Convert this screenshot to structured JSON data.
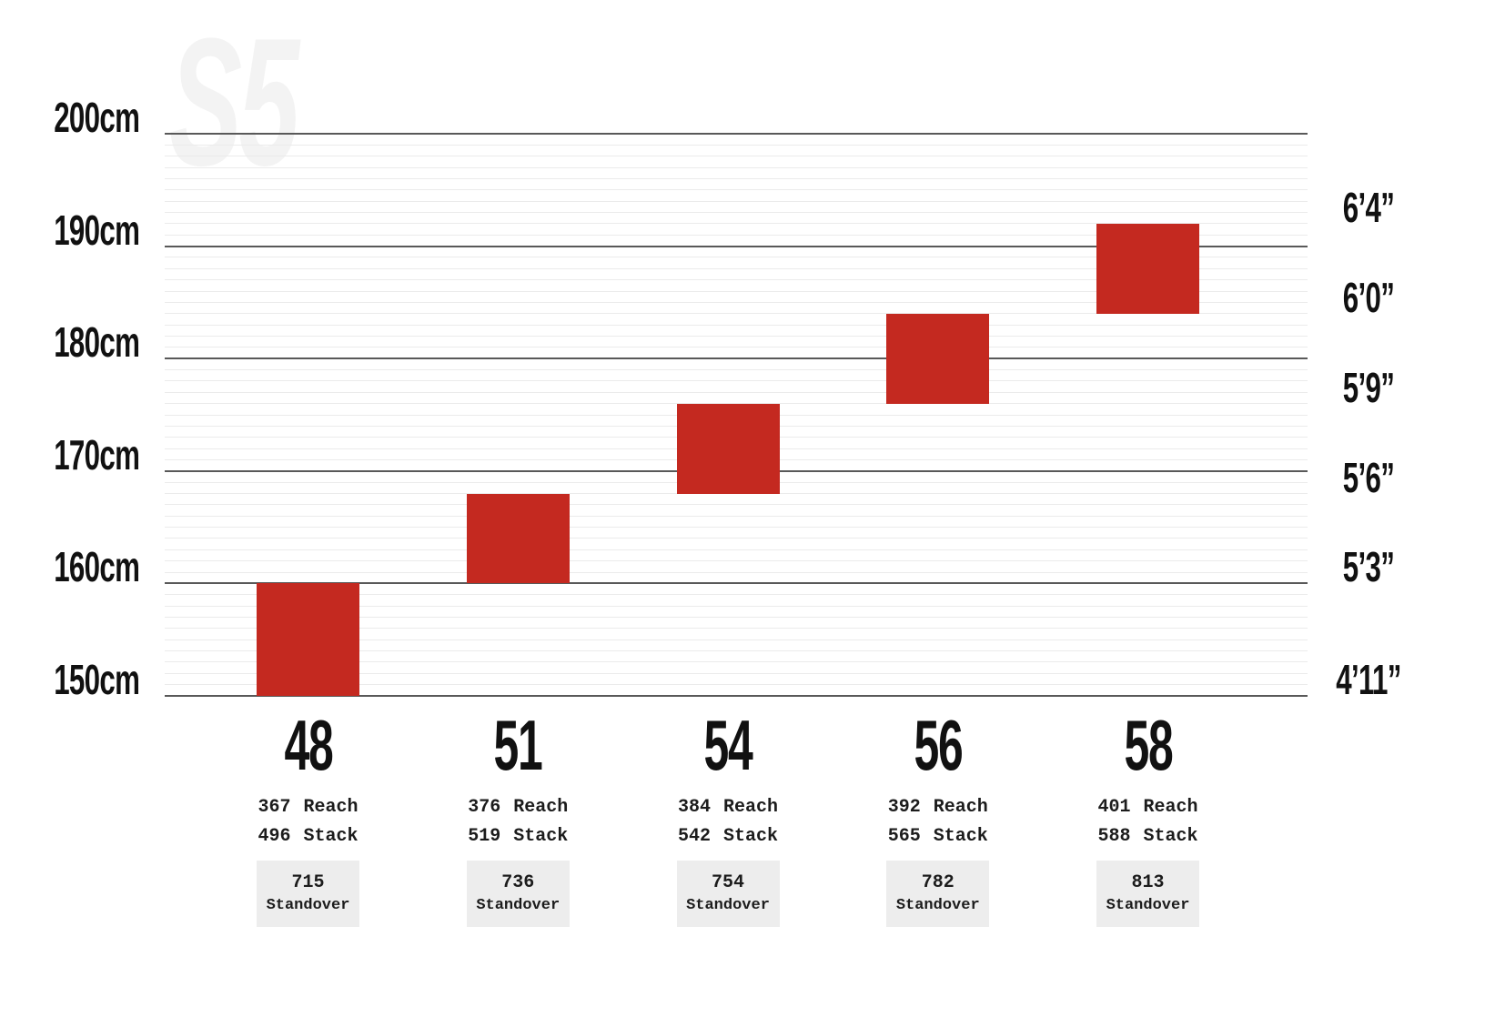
{
  "watermark": "S5",
  "colors": {
    "bar_red": "#c42920",
    "major_gridline": "#595959",
    "minor_gridline": "#ebebeb",
    "standover_box_bg": "#ededed",
    "text": "#111111",
    "watermark_gray": "#f3f3f3"
  },
  "chart_data": {
    "type": "bar",
    "subtype": "floating-range-columns",
    "watermark": "S5",
    "ylim": [
      150,
      200
    ],
    "grid": {
      "minor_step_cm": 1,
      "major_step_cm": 10,
      "grid_on": true
    },
    "y_axis_left": {
      "unit": "cm",
      "ticks": [
        {
          "label": "200cm",
          "cm": 200
        },
        {
          "label": "190cm",
          "cm": 190
        },
        {
          "label": "180cm",
          "cm": 180
        },
        {
          "label": "170cm",
          "cm": 170
        },
        {
          "label": "160cm",
          "cm": 160
        },
        {
          "label": "150cm",
          "cm": 150
        }
      ]
    },
    "y_axis_right": {
      "unit": "ft-in",
      "ticks": [
        {
          "label": "6’4”",
          "cm": 192
        },
        {
          "label": "6’0”",
          "cm": 184
        },
        {
          "label": "5’9”",
          "cm": 176
        },
        {
          "label": "5’6”",
          "cm": 168
        },
        {
          "label": "5’3”",
          "cm": 160
        },
        {
          "label": "4’11”",
          "cm": 150
        }
      ]
    },
    "categories": [
      "48",
      "51",
      "54",
      "56",
      "58"
    ],
    "series": [
      {
        "name": "rider_height_range_cm",
        "values": [
          [
            150,
            160
          ],
          [
            160,
            168
          ],
          [
            168,
            176
          ],
          [
            176,
            184
          ],
          [
            184,
            192
          ]
        ]
      }
    ],
    "field_labels": {
      "reach": "Reach",
      "stack": "Stack",
      "standover": "Standover"
    },
    "sizes": [
      {
        "label": "48",
        "height_min_cm": 150,
        "height_max_cm": 160,
        "reach": "367",
        "stack": "496",
        "standover": "715"
      },
      {
        "label": "51",
        "height_min_cm": 160,
        "height_max_cm": 168,
        "reach": "376",
        "stack": "519",
        "standover": "736"
      },
      {
        "label": "54",
        "height_min_cm": 168,
        "height_max_cm": 176,
        "reach": "384",
        "stack": "542",
        "standover": "754"
      },
      {
        "label": "56",
        "height_min_cm": 176,
        "height_max_cm": 184,
        "reach": "392",
        "stack": "565",
        "standover": "782"
      },
      {
        "label": "58",
        "height_min_cm": 184,
        "height_max_cm": 192,
        "reach": "401",
        "stack": "588",
        "standover": "813"
      }
    ]
  }
}
